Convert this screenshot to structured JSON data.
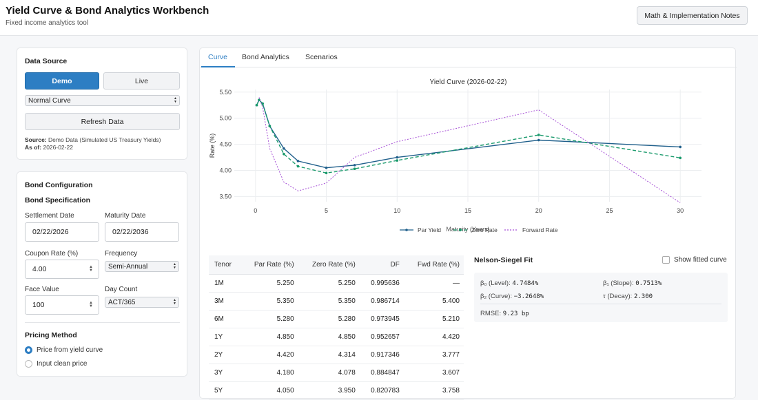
{
  "header": {
    "title": "Yield Curve & Bond Analytics Workbench",
    "subtitle": "Fixed income analytics tool",
    "notes_button": "Math & Implementation Notes"
  },
  "data_source": {
    "heading": "Data Source",
    "demo_label": "Demo",
    "live_label": "Live",
    "curve_select": "Normal Curve",
    "refresh_label": "Refresh Data",
    "source_key": "Source:",
    "source_value": "Demo Data (Simulated US Treasury Yields)",
    "asof_key": "As of:",
    "asof_value": "2026-02-22",
    "accent_color": "#2d7ec3"
  },
  "bond_config": {
    "heading": "Bond Configuration",
    "spec_heading": "Bond Specification",
    "settlement_label": "Settlement Date",
    "settlement_value": "02/22/2026",
    "maturity_label": "Maturity Date",
    "maturity_value": "02/22/2036",
    "coupon_label": "Coupon Rate (%)",
    "coupon_value": "4.00",
    "frequency_label": "Frequency",
    "frequency_value": "Semi-Annual",
    "face_label": "Face Value",
    "face_value": "100",
    "daycount_label": "Day Count",
    "daycount_value": "ACT/365",
    "pricing_heading": "Pricing Method",
    "pricing_options": [
      "Price from yield curve",
      "Input clean price"
    ],
    "pricing_selected": 0
  },
  "tabs": [
    "Curve",
    "Bond Analytics",
    "Scenarios"
  ],
  "active_tab": 0,
  "chart_data": {
    "type": "line",
    "title": "Yield Curve (2026-02-22)",
    "xlabel": "Maturity (Years)",
    "ylabel": "Rate (%)",
    "xlim": [
      -1.5,
      31.5
    ],
    "ylim": [
      3.4,
      5.55
    ],
    "xticks": [
      0,
      5,
      10,
      15,
      20,
      25,
      30
    ],
    "yticks": [
      "3.50",
      "4.00",
      "4.50",
      "5.00",
      "5.50"
    ],
    "legend_position": "bottom",
    "series": [
      {
        "name": "Par Yield",
        "color": "#1f5f8b",
        "style": "solid",
        "x": [
          0.083,
          0.25,
          0.5,
          1,
          2,
          3,
          5,
          7,
          10,
          20,
          30
        ],
        "y": [
          5.25,
          5.35,
          5.28,
          4.85,
          4.42,
          4.18,
          4.05,
          4.1,
          4.25,
          4.58,
          4.45
        ]
      },
      {
        "name": "Zero Rate",
        "color": "#1a9a6c",
        "style": "dashed",
        "x": [
          0.083,
          0.25,
          0.5,
          1,
          2,
          3,
          5,
          7,
          10,
          20,
          30
        ],
        "y": [
          5.25,
          5.35,
          5.28,
          4.85,
          4.314,
          4.078,
          3.95,
          4.03,
          4.19,
          4.68,
          4.24
        ]
      },
      {
        "name": "Forward Rate",
        "color": "#a64fd6",
        "style": "dotted",
        "x": [
          0.25,
          0.5,
          1,
          2,
          3,
          5,
          7,
          10,
          20,
          30
        ],
        "y": [
          5.4,
          5.21,
          4.42,
          3.777,
          3.607,
          3.758,
          4.25,
          4.55,
          5.16,
          3.38
        ]
      }
    ]
  },
  "table": {
    "headers": [
      "Tenor",
      "Par Rate (%)",
      "Zero Rate (%)",
      "DF",
      "Fwd Rate (%)"
    ],
    "rows": [
      [
        "1M",
        "5.250",
        "5.250",
        "0.995636",
        "—"
      ],
      [
        "3M",
        "5.350",
        "5.350",
        "0.986714",
        "5.400"
      ],
      [
        "6M",
        "5.280",
        "5.280",
        "0.973945",
        "5.210"
      ],
      [
        "1Y",
        "4.850",
        "4.850",
        "0.952657",
        "4.420"
      ],
      [
        "2Y",
        "4.420",
        "4.314",
        "0.917346",
        "3.777"
      ],
      [
        "3Y",
        "4.180",
        "4.078",
        "0.884847",
        "3.607"
      ],
      [
        "5Y",
        "4.050",
        "3.950",
        "0.820783",
        "3.758"
      ]
    ]
  },
  "nelson_siegel": {
    "title": "Nelson-Siegel Fit",
    "show_fitted_label": "Show fitted curve",
    "b0_label": "β₀ (Level):",
    "b0_value": "4.7484%",
    "b1_label": "β₁ (Slope):",
    "b1_value": "0.7513%",
    "b2_label": "β₂ (Curve):",
    "b2_value": "−3.2648%",
    "tau_label": "τ (Decay):",
    "tau_value": "2.300",
    "rmse_label": "RMSE:",
    "rmse_value": "9.23 bp"
  }
}
